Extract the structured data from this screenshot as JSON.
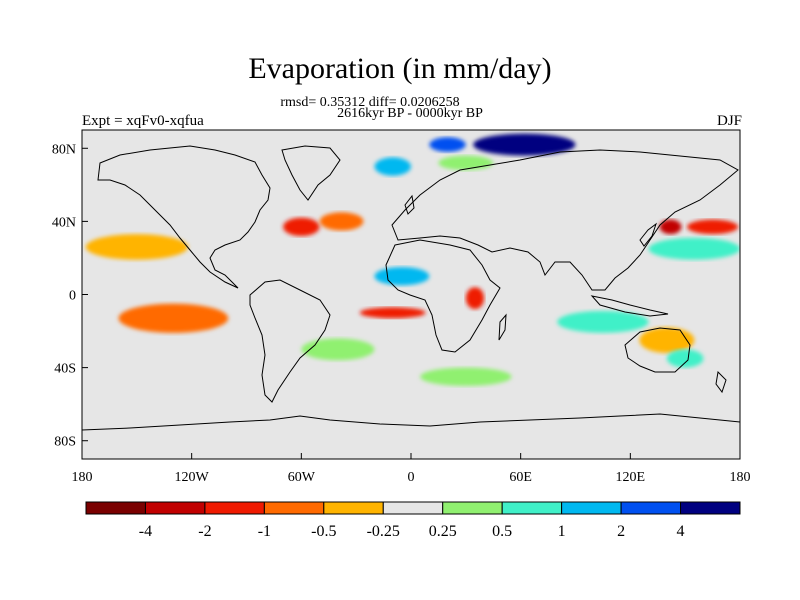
{
  "title": "Evaporation (in mm/day)",
  "stats": "rmsd= 0.35312 diff= 0.0206258",
  "period": "2616kyr BP - 0000kyr BP",
  "left_label": "Expt = xqFv0-xqfua",
  "right_label": "DJF",
  "colors": {
    "background": "#e6e6e6",
    "coast": "#000000",
    "levels": [
      "#7a0000",
      "#c10000",
      "#ef1a00",
      "#ff6a00",
      "#ffb400",
      "#e6e6e6",
      "#90f070",
      "#40f0c8",
      "#00b8f0",
      "#0050f0",
      "#000080"
    ]
  },
  "chart_data": {
    "type": "heatmap",
    "projection": "cylindrical equidistant",
    "lon_range": [
      -180,
      180
    ],
    "lat_range": [
      -90,
      90
    ],
    "lon_ticks": [
      "180",
      "120W",
      "60W",
      "0",
      "60E",
      "120E",
      "180"
    ],
    "lat_ticks": [
      "80N",
      "40N",
      "0",
      "40S",
      "80S"
    ],
    "colorbar_labels": [
      "-4",
      "-2",
      "-1",
      "-0.5",
      "-0.25",
      "0.25",
      "0.5",
      "1",
      "2",
      "4"
    ],
    "features": [
      {
        "lon": 62,
        "lat": 82,
        "rx": 28,
        "ry": 6,
        "level": 10
      },
      {
        "lon": 20,
        "lat": 82,
        "rx": 10,
        "ry": 4,
        "level": 9
      },
      {
        "lon": -10,
        "lat": 70,
        "rx": 10,
        "ry": 5,
        "level": 8
      },
      {
        "lon": 30,
        "lat": 72,
        "rx": 15,
        "ry": 4,
        "level": 6
      },
      {
        "lon": -60,
        "lat": 37,
        "rx": 10,
        "ry": 5,
        "level": 2
      },
      {
        "lon": -38,
        "lat": 40,
        "rx": 12,
        "ry": 5,
        "level": 3
      },
      {
        "lon": 142,
        "lat": 37,
        "rx": 6,
        "ry": 4,
        "level": 1
      },
      {
        "lon": 165,
        "lat": 37,
        "rx": 14,
        "ry": 4,
        "level": 2
      },
      {
        "lon": 155,
        "lat": 25,
        "rx": 25,
        "ry": 6,
        "level": 7
      },
      {
        "lon": -5,
        "lat": 10,
        "rx": 15,
        "ry": 5,
        "level": 8
      },
      {
        "lon": 35,
        "lat": -2,
        "rx": 5,
        "ry": 6,
        "level": 2
      },
      {
        "lon": -150,
        "lat": 26,
        "rx": 28,
        "ry": 7,
        "level": 4
      },
      {
        "lon": -130,
        "lat": -13,
        "rx": 30,
        "ry": 8,
        "level": 3
      },
      {
        "lon": -10,
        "lat": -10,
        "rx": 18,
        "ry": 3,
        "level": 2
      },
      {
        "lon": 105,
        "lat": -15,
        "rx": 25,
        "ry": 6,
        "level": 7
      },
      {
        "lon": 140,
        "lat": -25,
        "rx": 15,
        "ry": 7,
        "level": 4
      },
      {
        "lon": 150,
        "lat": -35,
        "rx": 10,
        "ry": 5,
        "level": 7
      },
      {
        "lon": -40,
        "lat": -30,
        "rx": 20,
        "ry": 6,
        "level": 6
      },
      {
        "lon": 30,
        "lat": -45,
        "rx": 25,
        "ry": 5,
        "level": 6
      }
    ]
  }
}
